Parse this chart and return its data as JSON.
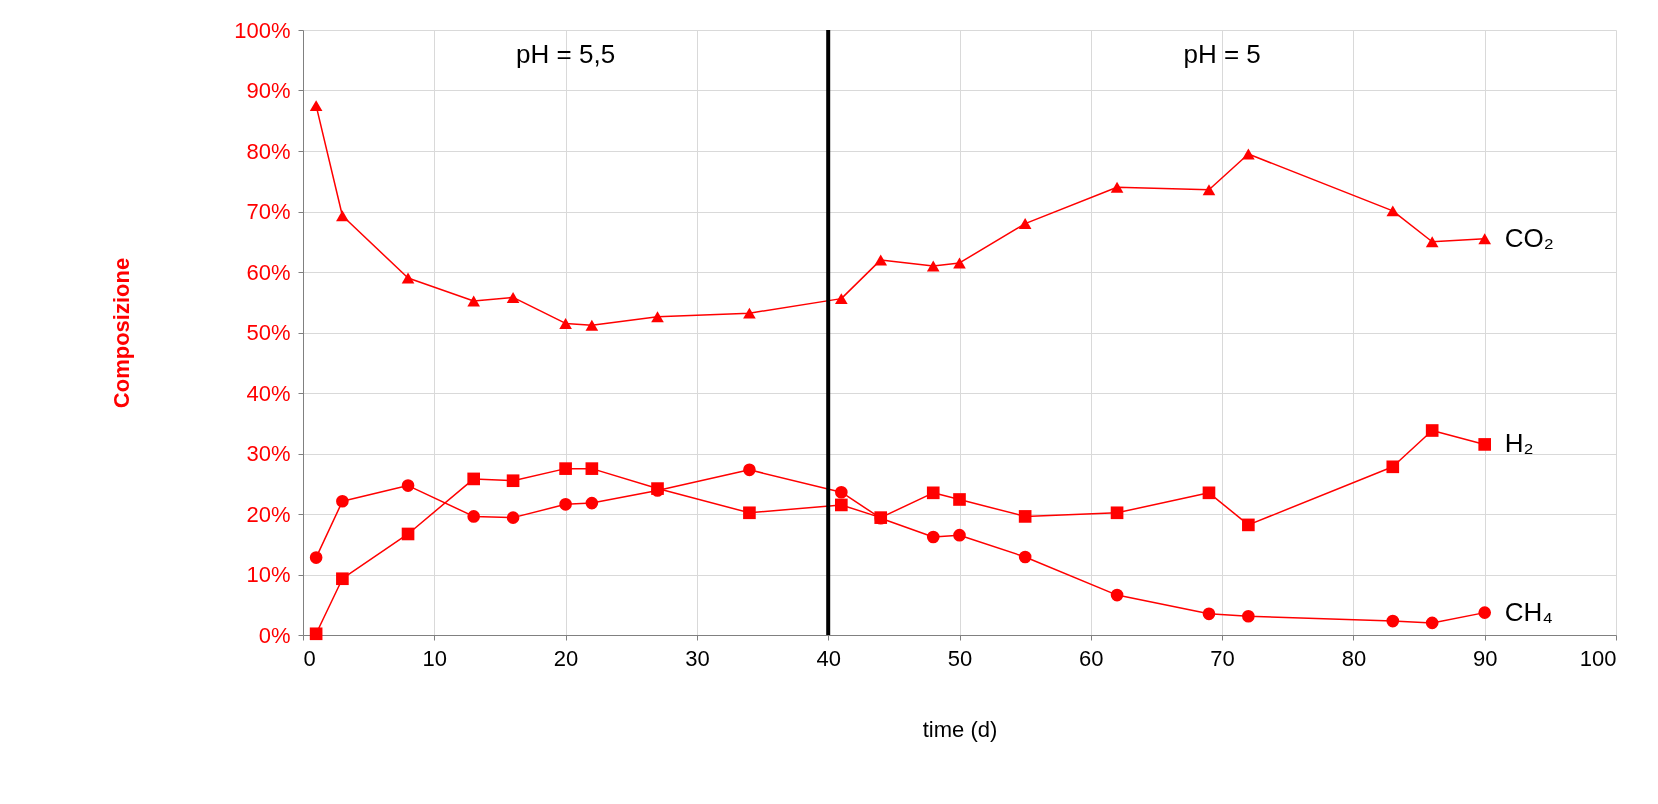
{
  "chart_data": {
    "type": "line",
    "xlabel": "time (d)",
    "ylabel": "Composizione",
    "x": [
      1,
      3,
      8,
      13,
      16,
      20,
      22,
      27,
      34,
      41,
      44,
      48,
      50,
      55,
      62,
      69,
      72,
      83,
      86,
      90
    ],
    "series": [
      {
        "name": "CO₂",
        "color": "#ff0000",
        "marker": "triangle",
        "values": [
          87.5,
          69.3,
          59,
          55.2,
          55.8,
          51.5,
          51.2,
          52.6,
          53.2,
          55.6,
          62,
          61,
          61.5,
          68,
          74,
          73.6,
          79.5,
          70.1,
          65,
          65.5
        ]
      },
      {
        "name": "H₂",
        "color": "#ff0000",
        "marker": "square",
        "values": [
          0.2,
          9.3,
          16.7,
          25.8,
          25.5,
          27.5,
          27.5,
          24.2,
          20.2,
          21.5,
          19.4,
          23.5,
          22.4,
          19.6,
          20.2,
          23.5,
          18.2,
          27.8,
          33.8,
          31.5
        ]
      },
      {
        "name": "CH₄",
        "color": "#ff0000",
        "marker": "circle",
        "values": [
          12.8,
          22.1,
          24.7,
          19.6,
          19.4,
          21.6,
          21.8,
          23.9,
          27.3,
          23.6,
          19.3,
          16.2,
          16.5,
          12.9,
          6.6,
          3.5,
          3.1,
          2.3,
          2,
          3.7
        ]
      }
    ],
    "xlim": [
      0,
      100
    ],
    "xticks": [
      0,
      10,
      20,
      30,
      40,
      50,
      60,
      70,
      80,
      90,
      100
    ],
    "ylim": [
      0,
      100
    ],
    "yticks": [
      {
        "value": 0,
        "label": "0%"
      },
      {
        "value": 10,
        "label": "10%"
      },
      {
        "value": 20,
        "label": "20%"
      },
      {
        "value": 30,
        "label": "30%"
      },
      {
        "value": 40,
        "label": "40%"
      },
      {
        "value": 50,
        "label": "50%"
      },
      {
        "value": 60,
        "label": "60%"
      },
      {
        "value": 70,
        "label": "70%"
      },
      {
        "value": 80,
        "label": "80%"
      },
      {
        "value": 90,
        "label": "90%"
      },
      {
        "value": 100,
        "label": "100%"
      }
    ],
    "ref_lines": [
      {
        "axis": "x",
        "value": 40,
        "color": "#000000"
      }
    ],
    "annotations": [
      "pH = 5,5",
      "pH = 5"
    ],
    "grid": true,
    "legend": false
  }
}
